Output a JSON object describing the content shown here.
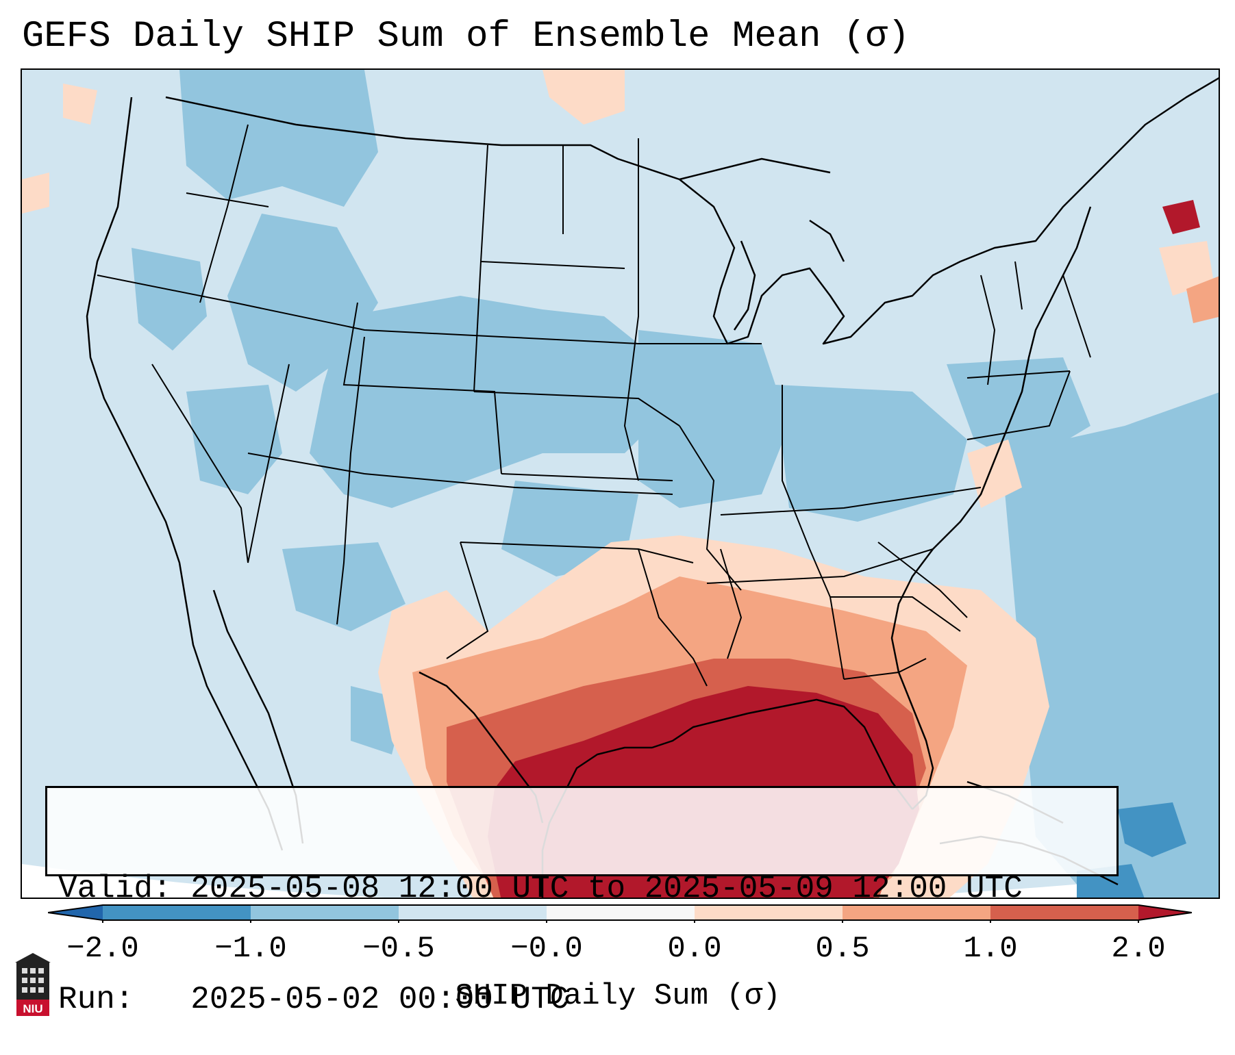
{
  "title": "GEFS Daily SHIP Sum of Ensemble Mean (σ)",
  "info": {
    "valid_line": "Valid: 2025-05-08 12:00 UTC to 2025-05-09 12:00 UTC",
    "run_line": "Run:   2025-05-02 00:00 UTC"
  },
  "colorbar": {
    "label": "SHIP Daily Sum (σ)",
    "ticks": [
      "−2.0",
      "−1.0",
      "−0.5",
      "−0.0",
      "0.0",
      "0.5",
      "1.0",
      "2.0"
    ],
    "bins": [
      {
        "range": "< -2.0",
        "color": "#2166ac"
      },
      {
        "range": "-2.0 to -1.0",
        "color": "#4393c3"
      },
      {
        "range": "-1.0 to -0.5",
        "color": "#92c5de"
      },
      {
        "range": "-0.5 to -0.0",
        "color": "#d1e5f0"
      },
      {
        "range": "-0.0 to 0.0",
        "color": "#f7f7f7"
      },
      {
        "range": "0.0 to 0.5",
        "color": "#fddbc7"
      },
      {
        "range": "0.5 to 1.0",
        "color": "#f4a582"
      },
      {
        "range": "1.0 to 2.0",
        "color": "#d6604d"
      },
      {
        "range": "> 2.0",
        "color": "#b2182b"
      }
    ]
  },
  "logo": {
    "text": "NIU",
    "icon": "university-tower-icon"
  },
  "map": {
    "region": "Contiguous United States",
    "pattern_summary": "Near-zero to negative SHIP over most of the U.S.; strongly positive values centered over the Gulf of Mexico, Texas coast and Louisiana, decreasing toward the Southeast and Florida."
  }
}
